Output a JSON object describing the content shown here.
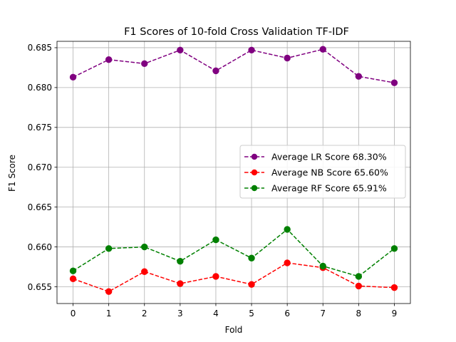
{
  "chart_data": {
    "type": "line",
    "title": "F1 Scores of 10-fold Cross Validation TF-IDF",
    "xlabel": "Fold",
    "ylabel": "F1 Score",
    "x": [
      0,
      1,
      2,
      3,
      4,
      5,
      6,
      7,
      8,
      9
    ],
    "xticks": [
      "0",
      "1",
      "2",
      "3",
      "4",
      "5",
      "6",
      "7",
      "8",
      "9"
    ],
    "yticks": [
      "0.655",
      "0.660",
      "0.665",
      "0.670",
      "0.675",
      "0.680",
      "0.685"
    ],
    "xlim": [
      -0.45,
      9.45
    ],
    "ylim": [
      0.6529,
      0.6858
    ],
    "grid": true,
    "legend_position": "center-right",
    "line_style": "dashed",
    "marker": "circle",
    "series": [
      {
        "name": "Average LR Score 68.30%",
        "color": "#800080",
        "values": [
          0.6813,
          0.6835,
          0.683,
          0.6847,
          0.6821,
          0.6847,
          0.6837,
          0.6848,
          0.6814,
          0.6806
        ]
      },
      {
        "name": "Average NB Score 65.60%",
        "color": "#ff0000",
        "values": [
          0.656,
          0.6544,
          0.6569,
          0.6554,
          0.6563,
          0.6553,
          0.658,
          0.6574,
          0.6551,
          0.6549
        ]
      },
      {
        "name": "Average RF Score 65.91%",
        "color": "#008000",
        "values": [
          0.657,
          0.6598,
          0.66,
          0.6582,
          0.6609,
          0.6586,
          0.6622,
          0.6576,
          0.6563,
          0.6598
        ]
      }
    ]
  }
}
